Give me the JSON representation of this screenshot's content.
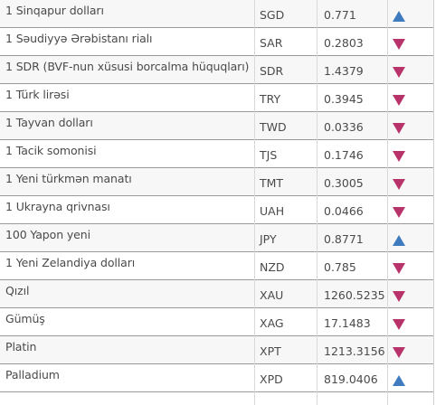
{
  "colors": {
    "up": "#3f7bbf",
    "down": "#b8336a"
  },
  "rows": [
    {
      "name": "1 Sinqapur dolları",
      "code": "SGD",
      "rate": "0.771",
      "trend": "up"
    },
    {
      "name": "1 Səudiyyə Ərəbistanı rialı",
      "code": "SAR",
      "rate": "0.2803",
      "trend": "down"
    },
    {
      "name": "1 SDR (BVF-nun xüsusi borcalma hüquqları)",
      "code": "SDR",
      "rate": "1.4379",
      "trend": "down"
    },
    {
      "name": "1 Türk lirəsi",
      "code": "TRY",
      "rate": "0.3945",
      "trend": "down"
    },
    {
      "name": "1 Tayvan dolları",
      "code": "TWD",
      "rate": "0.0336",
      "trend": "down"
    },
    {
      "name": "1 Tacik somonisi",
      "code": "TJS",
      "rate": "0.1746",
      "trend": "down"
    },
    {
      "name": "1 Yeni türkmən manatı",
      "code": "TMT",
      "rate": "0.3005",
      "trend": "down"
    },
    {
      "name": "1 Ukrayna qrivnası",
      "code": "UAH",
      "rate": "0.0466",
      "trend": "down"
    },
    {
      "name": "100 Yapon yeni",
      "code": "JPY",
      "rate": "0.8771",
      "trend": "up"
    },
    {
      "name": "1 Yeni Zelandiya dolları",
      "code": "NZD",
      "rate": "0.785",
      "trend": "down"
    },
    {
      "name": "Qızıl",
      "code": "XAU",
      "rate": "1260.5235",
      "trend": "down"
    },
    {
      "name": "Gümüş",
      "code": "XAG",
      "rate": "17.1483",
      "trend": "down"
    },
    {
      "name": "Platin",
      "code": "XPT",
      "rate": "1213.3156",
      "trend": "down"
    },
    {
      "name": "Palladium",
      "code": "XPD",
      "rate": "819.0406",
      "trend": "up"
    }
  ]
}
